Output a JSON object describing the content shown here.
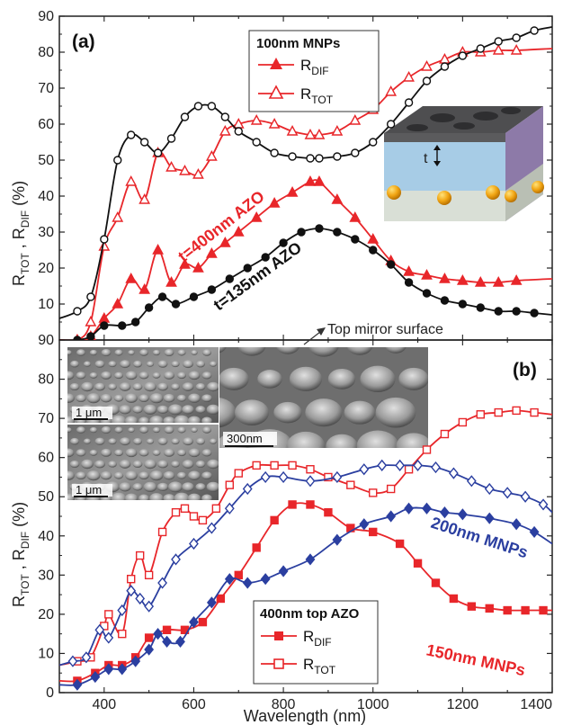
{
  "chart_data": [
    {
      "panel": "(a)",
      "type": "line",
      "xlabel": "",
      "ylabel": "R_TOT , R_DIF (%)",
      "xlim": [
        300,
        1400
      ],
      "ylim": [
        0,
        90
      ],
      "yticks": [
        10,
        20,
        30,
        40,
        50,
        60,
        70,
        80,
        90
      ],
      "legend": {
        "title": "100nm MNPs",
        "position": "top-center",
        "entries": [
          {
            "main": "R",
            "sub": "DIF",
            "series": "RDIF_400"
          },
          {
            "main": "R",
            "sub": "TOT",
            "series": "RTOT_400"
          }
        ]
      },
      "annotations": [
        {
          "text": "t=400nm AZO",
          "color": "#e8262a"
        },
        {
          "text": "t=135nm AZO",
          "color": "#111111"
        }
      ],
      "inset": {
        "label": "t"
      },
      "series": [
        {
          "id": "RDIF_400",
          "color": "#e8262a",
          "marker": "triangle",
          "filled": true,
          "x": [
            300,
            340,
            370,
            400,
            430,
            460,
            490,
            520,
            550,
            580,
            610,
            640,
            670,
            700,
            740,
            780,
            820,
            860,
            880,
            920,
            960,
            1000,
            1040,
            1080,
            1120,
            1160,
            1200,
            1240,
            1280,
            1320,
            1400
          ],
          "y": [
            0,
            0,
            1,
            6,
            10,
            17,
            14,
            25,
            16,
            21,
            20,
            24,
            27,
            30,
            34,
            38,
            41,
            44,
            44,
            39,
            34,
            28,
            22,
            19,
            18,
            17,
            16.5,
            16,
            16,
            16.5,
            17
          ]
        },
        {
          "id": "RTOT_400",
          "color": "#e8262a",
          "marker": "triangle",
          "filled": false,
          "x": [
            300,
            340,
            370,
            400,
            430,
            460,
            490,
            520,
            550,
            580,
            610,
            640,
            670,
            700,
            740,
            780,
            820,
            860,
            880,
            920,
            960,
            1000,
            1040,
            1080,
            1120,
            1160,
            1200,
            1240,
            1280,
            1320,
            1400
          ],
          "y": [
            0,
            0,
            5,
            26,
            34,
            44,
            39,
            52,
            48,
            47,
            46,
            51,
            58,
            60,
            61,
            60,
            58,
            57,
            57,
            58,
            61,
            64,
            69,
            73,
            76,
            78,
            80,
            80,
            80.5,
            80.5,
            81
          ]
        },
        {
          "id": "RDIF_135",
          "color": "#111111",
          "marker": "circle",
          "filled": true,
          "x": [
            300,
            340,
            370,
            400,
            440,
            470,
            500,
            530,
            560,
            600,
            640,
            680,
            720,
            760,
            800,
            840,
            880,
            920,
            960,
            1000,
            1040,
            1080,
            1120,
            1160,
            1200,
            1240,
            1280,
            1320,
            1360,
            1400
          ],
          "y": [
            0,
            0,
            1,
            4,
            4,
            5,
            9,
            12,
            10,
            12,
            14,
            17,
            20,
            23,
            27,
            30,
            31,
            30,
            28,
            25,
            21,
            16,
            13,
            11,
            10,
            9,
            8,
            8,
            7.5,
            7
          ]
        },
        {
          "id": "RTOT_135",
          "color": "#111111",
          "marker": "circle",
          "filled": false,
          "x": [
            300,
            340,
            370,
            400,
            430,
            460,
            490,
            520,
            550,
            580,
            610,
            640,
            670,
            700,
            740,
            780,
            820,
            860,
            880,
            920,
            960,
            1000,
            1040,
            1080,
            1120,
            1160,
            1200,
            1240,
            1280,
            1320,
            1360,
            1400
          ],
          "y": [
            6,
            8,
            12,
            28,
            50,
            57,
            55,
            52,
            56,
            62,
            65,
            65,
            62,
            58,
            55,
            52,
            51,
            50.5,
            50.5,
            51,
            52,
            55,
            60,
            66,
            72,
            76,
            79,
            81,
            83,
            84,
            86,
            87
          ]
        }
      ]
    },
    {
      "panel": "(b)",
      "type": "line",
      "xlabel": "Wavelength (nm)",
      "ylabel": "R_TOT , R_DIF (%)",
      "xlim": [
        300,
        1400
      ],
      "ylim": [
        0,
        90
      ],
      "xticks": [
        400,
        600,
        800,
        1000,
        1200,
        1400
      ],
      "yticks": [
        0,
        10,
        20,
        30,
        40,
        50,
        60,
        70,
        80,
        90
      ],
      "legend": {
        "title": "400nm top AZO",
        "position": "bottom-center",
        "entries": [
          {
            "main": "R",
            "sub": "DIF",
            "series": "RDIF_150"
          },
          {
            "main": "R",
            "sub": "TOT",
            "series": "RTOT_150"
          }
        ]
      },
      "annotations": [
        {
          "text": "200nm MNPs",
          "color": "#2b3fa0"
        },
        {
          "text": "150nm MNPs",
          "color": "#e8262a"
        },
        {
          "text": "Top mirror surface",
          "color": "#333333"
        }
      ],
      "sem_scalebars": [
        "1 μm",
        "1 μm",
        "300nm"
      ],
      "series": [
        {
          "id": "RDIF_150",
          "color": "#e8262a",
          "marker": "square",
          "filled": true,
          "x": [
            300,
            340,
            380,
            410,
            440,
            470,
            500,
            540,
            580,
            620,
            660,
            700,
            740,
            780,
            820,
            860,
            900,
            950,
            1000,
            1060,
            1100,
            1140,
            1180,
            1220,
            1260,
            1300,
            1340,
            1380,
            1400
          ],
          "y": [
            3,
            3,
            5,
            7,
            7,
            9,
            14,
            16,
            16,
            18,
            24,
            30,
            37,
            44,
            48,
            48,
            46,
            42,
            41,
            38,
            33,
            28,
            24,
            22,
            21.5,
            21,
            21,
            21,
            21
          ]
        },
        {
          "id": "RTOT_150",
          "color": "#e8262a",
          "marker": "square",
          "filled": false,
          "x": [
            300,
            340,
            370,
            400,
            410,
            440,
            460,
            480,
            500,
            530,
            560,
            580,
            600,
            620,
            650,
            680,
            700,
            740,
            780,
            820,
            860,
            900,
            950,
            1000,
            1040,
            1080,
            1120,
            1160,
            1200,
            1240,
            1280,
            1320,
            1360,
            1400
          ],
          "y": [
            7,
            8,
            9,
            17,
            20,
            15,
            29,
            35,
            30,
            41,
            46,
            47,
            45,
            44,
            47,
            53,
            56,
            58,
            58,
            58,
            57,
            55,
            53,
            51,
            52,
            57,
            62,
            66,
            69,
            71,
            71.5,
            72,
            71.5,
            71
          ]
        },
        {
          "id": "RDIF_200",
          "color": "#2b3fa0",
          "marker": "diamond",
          "filled": true,
          "x": [
            300,
            340,
            380,
            410,
            440,
            470,
            500,
            520,
            540,
            570,
            600,
            640,
            680,
            720,
            760,
            800,
            860,
            920,
            980,
            1040,
            1080,
            1120,
            1160,
            1200,
            1260,
            1320,
            1360,
            1400
          ],
          "y": [
            2,
            2,
            4,
            6,
            6,
            8,
            11,
            15,
            13,
            13,
            18,
            23,
            29,
            28,
            29,
            31,
            34,
            39,
            43,
            45,
            47,
            47,
            46,
            45.5,
            44.5,
            43,
            41,
            38
          ]
        },
        {
          "id": "RTOT_200",
          "color": "#2b3fa0",
          "marker": "diamond",
          "filled": false,
          "x": [
            300,
            330,
            360,
            390,
            410,
            440,
            460,
            480,
            500,
            530,
            560,
            600,
            640,
            680,
            720,
            760,
            800,
            860,
            920,
            980,
            1020,
            1060,
            1100,
            1140,
            1180,
            1220,
            1260,
            1300,
            1340,
            1380,
            1400
          ],
          "y": [
            7,
            8,
            9,
            16,
            14,
            21,
            26,
            24,
            22,
            28,
            34,
            38,
            42,
            47,
            52,
            55,
            55,
            54,
            55,
            57,
            58,
            58,
            58,
            57.5,
            56,
            54,
            52,
            51,
            50,
            48,
            46
          ]
        }
      ]
    }
  ]
}
